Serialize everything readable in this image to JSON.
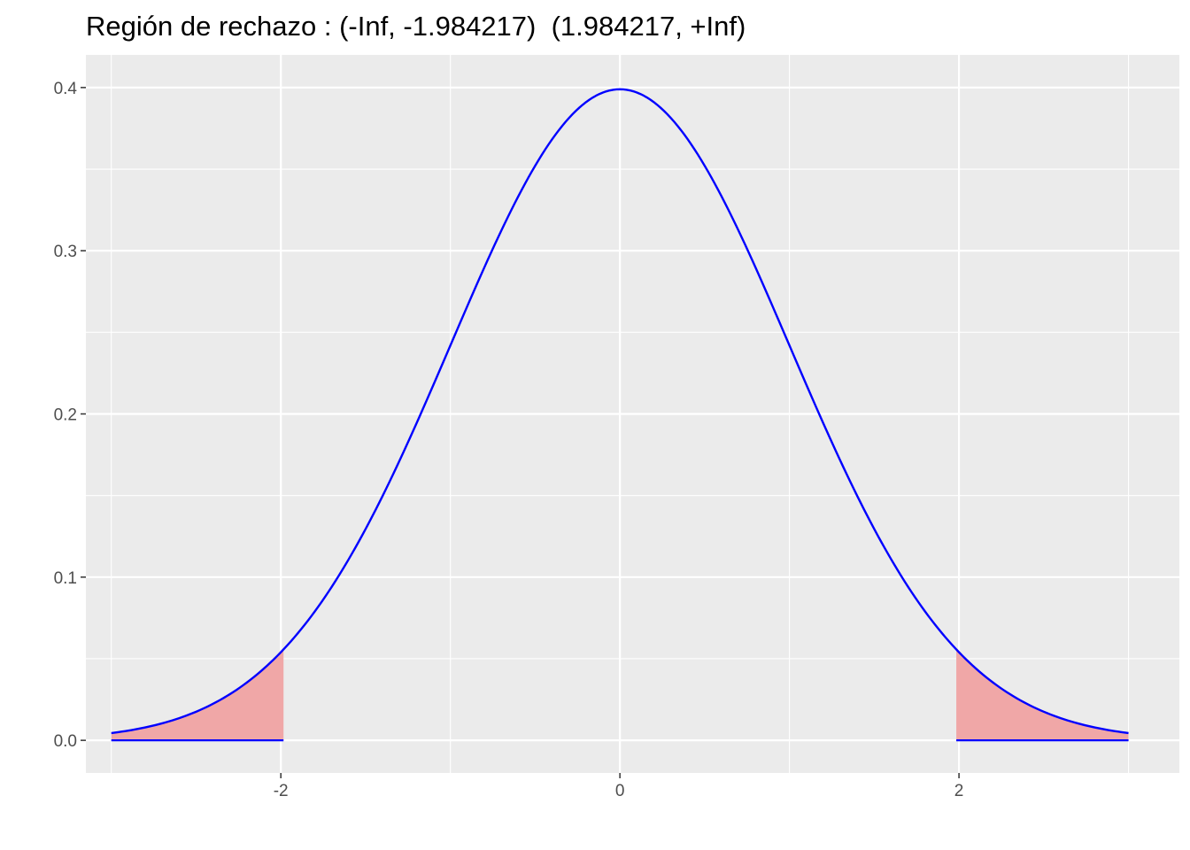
{
  "chart_data": {
    "type": "area",
    "title": "Región de rechazo : (-Inf, -1.984217)  (1.984217, +Inf)",
    "xlabel": "",
    "ylabel": "",
    "xlim": [
      -3.15,
      3.3
    ],
    "ylim": [
      -0.02,
      0.42
    ],
    "x_ticks": [
      -2,
      0,
      2
    ],
    "x_tick_labels": [
      "-2",
      "0",
      "2"
    ],
    "y_ticks": [
      0.0,
      0.1,
      0.2,
      0.3,
      0.4
    ],
    "y_tick_labels": [
      "0.0",
      "0.1",
      "0.2",
      "0.3",
      "0.4"
    ],
    "grid": true,
    "curve": {
      "name": "",
      "color": "#0000ff",
      "distribution": "standard normal density",
      "x_range": [
        -3,
        3
      ],
      "x": [
        -3.0,
        -2.5,
        -2.0,
        -1.5,
        -1.0,
        -0.5,
        0.0,
        0.5,
        1.0,
        1.5,
        2.0,
        2.5,
        3.0
      ],
      "y": [
        0.0044,
        0.0175,
        0.054,
        0.1295,
        0.242,
        0.3521,
        0.3989,
        0.3521,
        0.242,
        0.1295,
        0.054,
        0.0175,
        0.0044
      ]
    },
    "rejection_regions": [
      {
        "x_from": -3.0,
        "x_to": -1.984217
      },
      {
        "x_from": 1.984217,
        "x_to": 3.0
      }
    ],
    "rejection_color": "#f0a7a7"
  }
}
